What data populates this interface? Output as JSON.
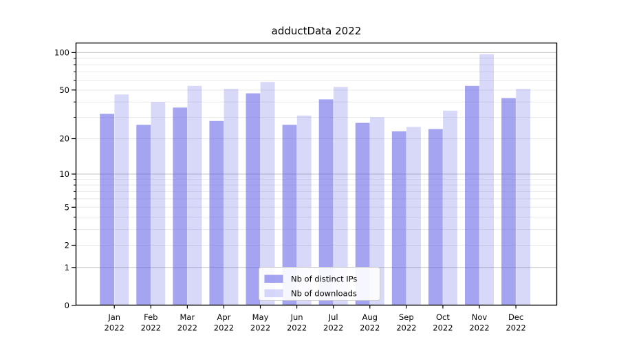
{
  "title": "adductData 2022",
  "chart_data": {
    "type": "bar",
    "title": "adductData 2022",
    "year_label": "2022",
    "categories": [
      "Jan",
      "Feb",
      "Mar",
      "Apr",
      "May",
      "Jun",
      "Jul",
      "Aug",
      "Sep",
      "Oct",
      "Nov",
      "Dec"
    ],
    "series": [
      {
        "key": "distinct-ips",
        "name": "Nb of distinct IPs",
        "color": "#5a5ae6",
        "opacity": 0.55,
        "values": [
          32,
          26,
          36,
          28,
          47,
          26,
          42,
          27,
          23,
          24,
          54,
          43
        ]
      },
      {
        "key": "downloads",
        "name": "Nb of downloads",
        "color": "#5a5ae6",
        "opacity": 0.24,
        "values": [
          46,
          40,
          54,
          51,
          58,
          31,
          53,
          30,
          25,
          34,
          97,
          51
        ]
      }
    ],
    "yscale": "log1p",
    "ylim": [
      0,
      120
    ],
    "yticks_labeled": [
      0,
      1,
      2,
      5,
      10,
      20,
      50,
      100
    ],
    "yticks_major": [
      1,
      10,
      100
    ],
    "yticks_minor_unlabeled": [
      3,
      4,
      6,
      7,
      8,
      9,
      30,
      40,
      60,
      70,
      80,
      90
    ],
    "grid": true,
    "legend_position": "bottom-center"
  },
  "colors": {
    "grid_major": "#c4c4c4",
    "grid_minor": "#e9e9e9",
    "spine": "#000000",
    "text": "#000000",
    "legend_border": "#cccccc",
    "legend_bg": "#ffffff"
  }
}
